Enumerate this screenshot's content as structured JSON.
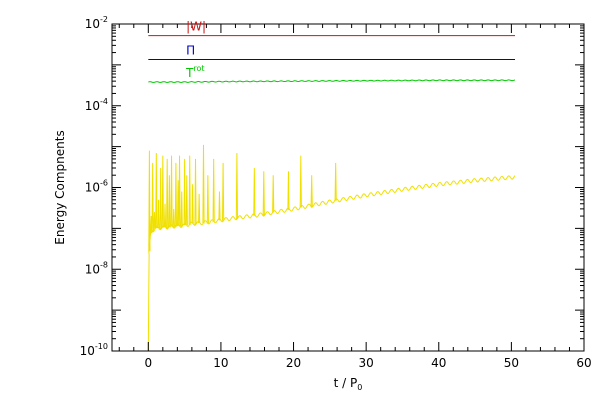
{
  "chart_data": {
    "type": "line",
    "title": "",
    "xlabel": "t / P",
    "xlabel_subscript": "0",
    "ylabel": "Energy Compnents",
    "xscale": "linear",
    "yscale": "log",
    "xlim": [
      -5,
      60
    ],
    "ylim": [
      1e-10,
      0.01
    ],
    "xticks": [
      0,
      10,
      20,
      30,
      40,
      50,
      60
    ],
    "yticks": [
      {
        "value": 1e-10,
        "base": "10",
        "exp": "-10"
      },
      {
        "value": 1e-08,
        "base": "10",
        "exp": "-8"
      },
      {
        "value": 1e-06,
        "base": "10",
        "exp": "-6"
      },
      {
        "value": 0.0001,
        "base": "10",
        "exp": "-4"
      },
      {
        "value": 0.01,
        "base": "10",
        "exp": "-2"
      }
    ],
    "grid": false,
    "series": [
      {
        "name": "|W|",
        "label_main": "|W|",
        "label_sup": "",
        "color": "#c81414",
        "x": [
          0,
          50.5
        ],
        "y": [
          0.0052,
          0.0052
        ]
      },
      {
        "name": "Π",
        "label_main": "Π",
        "label_sup": "",
        "color": "#0000c8",
        "x": [
          0,
          50.5
        ],
        "y": [
          0.00135,
          0.00135
        ]
      },
      {
        "name": "T rot",
        "label_main": "T",
        "label_sup": "rot",
        "color": "#00c800",
        "x": [
          0,
          5,
          10,
          20,
          30,
          40,
          50.5
        ],
        "y": [
          0.00038,
          0.00038,
          0.00039,
          0.0004,
          0.00041,
          0.00042,
          0.00042
        ],
        "oscillation_amplitude": 0.02
      },
      {
        "name": "",
        "color": "#f0e000",
        "x": [
          0,
          0.1,
          0.3,
          0.6,
          1,
          2,
          3,
          4,
          5,
          6,
          7,
          8,
          10,
          12,
          15,
          20,
          25,
          30,
          35,
          40,
          45,
          50.5
        ],
        "y": [
          1e-10,
          2e-08,
          7e-08,
          9e-08,
          1e-07,
          1.05e-07,
          1.1e-07,
          1.15e-07,
          1.2e-07,
          1.3e-07,
          1.35e-07,
          1.4e-07,
          1.6e-07,
          1.8e-07,
          2.1e-07,
          3e-07,
          4.5e-07,
          6.5e-07,
          9e-07,
          1.2e-06,
          1.5e-06,
          1.8e-06
        ],
        "oscillation_amplitude": 0.1,
        "spikes": [
          {
            "x": 0.15,
            "y": 8e-06
          },
          {
            "x": 0.4,
            "y": 2e-07
          },
          {
            "x": 0.6,
            "y": 4e-06
          },
          {
            "x": 0.85,
            "y": 2.5e-07
          },
          {
            "x": 1.1,
            "y": 7e-06
          },
          {
            "x": 1.4,
            "y": 5e-07
          },
          {
            "x": 1.7,
            "y": 3e-06
          },
          {
            "x": 2.0,
            "y": 6e-06
          },
          {
            "x": 2.3,
            "y": 4e-07
          },
          {
            "x": 2.6,
            "y": 5e-06
          },
          {
            "x": 2.9,
            "y": 2e-06
          },
          {
            "x": 3.2,
            "y": 6e-06
          },
          {
            "x": 3.5,
            "y": 3e-07
          },
          {
            "x": 3.8,
            "y": 4e-06
          },
          {
            "x": 4.1,
            "y": 1.5e-06
          },
          {
            "x": 4.3,
            "y": 6e-06
          },
          {
            "x": 4.6,
            "y": 8e-07
          },
          {
            "x": 5.0,
            "y": 5e-06
          },
          {
            "x": 5.3,
            "y": 2e-06
          },
          {
            "x": 5.7,
            "y": 6e-06
          },
          {
            "x": 6.1,
            "y": 1.2e-06
          },
          {
            "x": 6.5,
            "y": 5e-06
          },
          {
            "x": 7.0,
            "y": 7e-07
          },
          {
            "x": 7.6,
            "y": 1.1e-05
          },
          {
            "x": 8.2,
            "y": 2e-06
          },
          {
            "x": 9.0,
            "y": 5e-06
          },
          {
            "x": 9.8,
            "y": 8e-07
          },
          {
            "x": 10.3,
            "y": 4e-06
          },
          {
            "x": 12.2,
            "y": 7e-06
          },
          {
            "x": 14.6,
            "y": 3e-06
          },
          {
            "x": 15.9,
            "y": 2.5e-06
          },
          {
            "x": 17.2,
            "y": 2e-06
          },
          {
            "x": 19.3,
            "y": 2.5e-06
          },
          {
            "x": 21.0,
            "y": 6e-06
          },
          {
            "x": 22.5,
            "y": 2e-06
          },
          {
            "x": 25.8,
            "y": 4e-06
          }
        ]
      }
    ]
  }
}
